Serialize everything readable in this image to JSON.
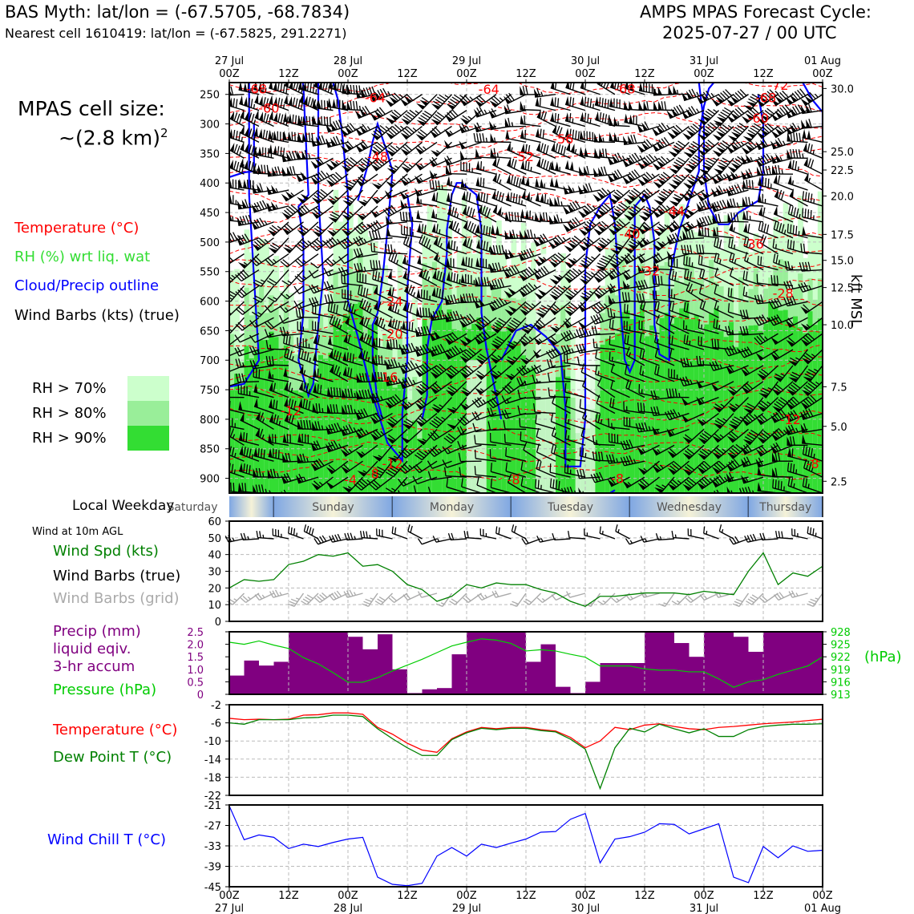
{
  "header": {
    "site_line": "BAS Myth: lat/lon = (-67.5705, -68.7834)",
    "cell_line": "Nearest cell 1610419: lat/lon = (-67.5825, 291.2271)",
    "cycle_title": "AMPS MPAS Forecast Cycle:",
    "cycle_value": "2025-07-27 / 00 UTC"
  },
  "side": {
    "cell_size_title": "MPAS cell size:",
    "cell_size_value": "~(2.8 km)",
    "cell_size_exp": "2",
    "legend_temperature": "Temperature (°C)",
    "legend_rh": "RH (%) wrt liq. wat",
    "legend_cloud": "Cloud/Precip outline",
    "legend_wind": "Wind Barbs (kts) (true)",
    "rh70": "RH > 70%",
    "rh80": "RH > 80%",
    "rh90": "RH > 90%",
    "local_weekday": "Local Weekday",
    "wind_10m": "Wind at 10m AGL",
    "wind_spd": "Wind Spd (kts)",
    "wind_barbs_true": "Wind Barbs (true)",
    "wind_barbs_grid": "Wind Barbs (grid)",
    "precip_1": "Precip (mm)",
    "precip_2": "liquid eqiv.",
    "precip_3": "3-hr accum",
    "pressure": "Pressure (hPa)",
    "pressure_unit": "(hPa)",
    "temp_label": "Temperature (°C)",
    "dew_label": "Dew Point T (°C)",
    "windchill_label": "Wind Chill T (°C)",
    "kft_label": "kft MSL"
  },
  "colors": {
    "temperature": "#ff0000",
    "rh_label": "#33dd33",
    "cloud": "#0000ff",
    "rh70": "#ccffcc",
    "rh80": "#99ee99",
    "rh90": "#33dd33",
    "precip": "#800080",
    "pressure": "#00aa00",
    "dewpoint": "#008000",
    "windchill": "#0000ff",
    "grid_barb": "#aaaaaa"
  },
  "time_axis": {
    "top_ticks": [
      {
        "l1": "27 Jul",
        "l2": "00Z"
      },
      {
        "l1": "",
        "l2": "12Z"
      },
      {
        "l1": "28 Jul",
        "l2": "00Z"
      },
      {
        "l1": "",
        "l2": "12Z"
      },
      {
        "l1": "29 Jul",
        "l2": "00Z"
      },
      {
        "l1": "",
        "l2": "12Z"
      },
      {
        "l1": "30 Jul",
        "l2": "00Z"
      },
      {
        "l1": "",
        "l2": "12Z"
      },
      {
        "l1": "31 Jul",
        "l2": "00Z"
      },
      {
        "l1": "",
        "l2": "12Z"
      },
      {
        "l1": "01 Aug",
        "l2": "00Z"
      }
    ],
    "weekdays": [
      "Saturday",
      "Sunday",
      "Monday",
      "Tuesday",
      "Wednesday",
      "Thursday"
    ]
  },
  "chart_data": [
    {
      "type": "heatmap",
      "name": "time-height cross section",
      "y_pressure_ticks": [
        250,
        300,
        350,
        400,
        450,
        500,
        550,
        600,
        650,
        700,
        750,
        800,
        850,
        900
      ],
      "ylim_hpa": [
        925,
        230
      ],
      "y_kft_ticks": [
        {
          "p": 240,
          "label": "30.0"
        },
        {
          "p": 347,
          "label": "25.0"
        },
        {
          "p": 378,
          "label": "22.5"
        },
        {
          "p": 422,
          "label": "20.0"
        },
        {
          "p": 487,
          "label": "17.5"
        },
        {
          "p": 531,
          "label": "15.0"
        },
        {
          "p": 577,
          "label": "12.5"
        },
        {
          "p": 640,
          "label": "10.0"
        },
        {
          "p": 745,
          "label": "7.5"
        },
        {
          "p": 812,
          "label": "5.0"
        },
        {
          "p": 905,
          "label": "2.5"
        }
      ],
      "temperature_labels": [
        {
          "h": 5.5,
          "p": 240,
          "t": "-68"
        },
        {
          "h": 8,
          "p": 273,
          "t": "-60"
        },
        {
          "h": 29.5,
          "p": 255,
          "t": "-64"
        },
        {
          "h": 52.5,
          "p": 241,
          "t": "-64"
        },
        {
          "h": 80,
          "p": 240,
          "t": "-68"
        },
        {
          "h": 111,
          "p": 234,
          "t": "-72"
        },
        {
          "h": 108.5,
          "p": 255,
          "t": "-68"
        },
        {
          "h": 107,
          "p": 290,
          "t": "-60"
        },
        {
          "h": 67.5,
          "p": 325,
          "t": "-56"
        },
        {
          "h": 30,
          "p": 355,
          "t": "-48"
        },
        {
          "h": 59.5,
          "p": 355,
          "t": "-52"
        },
        {
          "h": 90,
          "p": 447,
          "t": "-44"
        },
        {
          "h": 81,
          "p": 486,
          "t": "-40"
        },
        {
          "h": 106,
          "p": 503,
          "t": "-36"
        },
        {
          "h": 85,
          "p": 548,
          "t": "-32"
        },
        {
          "h": 112,
          "p": 586,
          "t": "-28"
        },
        {
          "h": 33,
          "p": 600,
          "t": "-24"
        },
        {
          "h": 33,
          "p": 655,
          "t": "-20"
        },
        {
          "h": 32,
          "p": 728,
          "t": "-16"
        },
        {
          "h": 12.5,
          "p": 785,
          "t": "-12"
        },
        {
          "h": 113.5,
          "p": 800,
          "t": "-12"
        },
        {
          "h": 33,
          "p": 875,
          "t": "-12"
        },
        {
          "h": 29,
          "p": 892,
          "t": "-8"
        },
        {
          "h": 57.5,
          "p": 902,
          "t": "-8"
        },
        {
          "h": 78.5,
          "p": 900,
          "t": "-8"
        },
        {
          "h": 118,
          "p": 875,
          "t": "-8"
        },
        {
          "h": 24.5,
          "p": 902,
          "t": "-4"
        }
      ]
    },
    {
      "type": "line",
      "name": "wind speed",
      "ylim": [
        0,
        60
      ],
      "yticks": [
        0,
        10,
        20,
        30,
        40,
        50,
        60
      ],
      "x_hours": [
        0,
        3,
        6,
        9,
        12,
        15,
        18,
        21,
        24,
        27,
        30,
        33,
        36,
        39,
        42,
        45,
        48,
        51,
        54,
        57,
        60,
        63,
        66,
        69,
        72,
        75,
        78,
        81,
        84,
        87,
        90,
        93,
        96,
        99,
        102,
        105,
        108,
        111,
        114,
        117,
        120
      ],
      "values": [
        20,
        25,
        24,
        25,
        34,
        36,
        40,
        39,
        41,
        33,
        34,
        30,
        22,
        19,
        12,
        15,
        22,
        20,
        23,
        22,
        22,
        19,
        17,
        12,
        9,
        15,
        15,
        16,
        17,
        17,
        17,
        16,
        18,
        17,
        16,
        30,
        41,
        22,
        29,
        27,
        33
      ]
    },
    {
      "type": "bar",
      "name": "3-hr precipitation and pressure",
      "ylim_precip": [
        0,
        2.5
      ],
      "yticks_precip": [
        "0",
        "0.5",
        "1.0",
        "1.5",
        "2.0",
        "2.5"
      ],
      "ylim_pressure": [
        913,
        928
      ],
      "yticks_pressure": [
        "913",
        "916",
        "919",
        "922",
        "925",
        "928"
      ],
      "bar_end_hours": [
        3,
        6,
        9,
        12,
        15,
        18,
        21,
        24,
        27,
        30,
        33,
        36,
        39,
        42,
        45,
        48,
        51,
        54,
        57,
        60,
        63,
        66,
        69,
        72,
        75,
        78,
        81,
        84,
        87,
        90,
        93,
        96,
        99,
        102,
        105,
        108,
        111,
        114,
        117,
        120
      ],
      "precip": [
        0.75,
        1.35,
        1.15,
        1.3,
        2.55,
        2.55,
        2.55,
        2.55,
        2.3,
        1.8,
        2.4,
        1.0,
        0.05,
        0.2,
        0.25,
        1.6,
        2.55,
        2.55,
        2.55,
        2.55,
        1.3,
        2.0,
        0.3,
        0.05,
        0.5,
        1.25,
        1.25,
        1.25,
        2.55,
        2.55,
        2.05,
        1.5,
        2.55,
        2.55,
        2.3,
        1.7,
        2.55,
        2.55,
        2.55,
        2.55
      ],
      "pressure_hours": [
        0,
        3,
        6,
        9,
        12,
        15,
        18,
        21,
        24,
        27,
        30,
        33,
        36,
        39,
        42,
        45,
        48,
        51,
        54,
        57,
        60,
        63,
        66,
        69,
        72,
        75,
        78,
        81,
        84,
        87,
        90,
        93,
        96,
        99,
        102,
        105,
        108,
        111,
        114,
        117,
        120
      ],
      "pressure": [
        925.5,
        925.0,
        925.8,
        924.8,
        924.0,
        921.8,
        920.3,
        918.2,
        915.9,
        915.9,
        917.0,
        918.6,
        920.0,
        921.4,
        923.0,
        924.6,
        925.5,
        926.3,
        926.0,
        925.2,
        923.4,
        923.7,
        923.4,
        922.6,
        921.9,
        919.8,
        919.8,
        919.8,
        919.1,
        918.8,
        918.8,
        918.4,
        918.4,
        916.7,
        914.7,
        916.0,
        916.5,
        917.8,
        918.8,
        919.8,
        922.0
      ]
    },
    {
      "type": "line",
      "name": "temperature and dew point",
      "ylim": [
        -22,
        -2
      ],
      "yticks": [
        -2,
        -6,
        -10,
        -14,
        -18,
        -22
      ],
      "x_hours": [
        0,
        3,
        6,
        9,
        12,
        15,
        18,
        21,
        24,
        27,
        30,
        33,
        36,
        39,
        42,
        45,
        48,
        51,
        54,
        57,
        60,
        63,
        66,
        69,
        72,
        75,
        78,
        81,
        84,
        87,
        90,
        93,
        96,
        99,
        102,
        105,
        108,
        111,
        114,
        117,
        120
      ],
      "series": [
        {
          "name": "Temperature",
          "values": [
            -5.0,
            -5.3,
            -5.2,
            -5.3,
            -5.2,
            -4.3,
            -4.2,
            -3.8,
            -3.8,
            -4.1,
            -7.0,
            -8.5,
            -10.5,
            -12.0,
            -12.5,
            -9.5,
            -8.0,
            -7.0,
            -7.3,
            -7.0,
            -7.0,
            -7.5,
            -7.8,
            -9.2,
            -11.5,
            -10.0,
            -7.0,
            -7.5,
            -6.5,
            -6.2,
            -6.8,
            -7.3,
            -7.5,
            -7.0,
            -6.8,
            -6.5,
            -6.2,
            -6.0,
            -5.8,
            -5.5,
            -5.2
          ]
        },
        {
          "name": "Dew Point T",
          "values": [
            -6.0,
            -6.3,
            -5.3,
            -5.3,
            -5.3,
            -4.9,
            -4.8,
            -4.3,
            -4.3,
            -4.6,
            -7.3,
            -9.5,
            -11.5,
            -13.2,
            -13.2,
            -9.7,
            -8.2,
            -7.2,
            -7.5,
            -7.2,
            -7.2,
            -7.7,
            -8.0,
            -9.6,
            -11.8,
            -20.5,
            -11.5,
            -7.2,
            -8.0,
            -6.3,
            -7.3,
            -8.2,
            -7.3,
            -9.0,
            -9.0,
            -7.5,
            -6.8,
            -6.5,
            -6.3,
            -6.3,
            -6.2
          ]
        }
      ]
    },
    {
      "type": "line",
      "name": "wind chill",
      "ylim": [
        -45,
        -21
      ],
      "yticks": [
        -21,
        -27,
        -33,
        -39,
        -45
      ],
      "x_hours": [
        0,
        3,
        6,
        9,
        12,
        15,
        18,
        21,
        24,
        27,
        30,
        33,
        36,
        39,
        42,
        45,
        48,
        51,
        54,
        57,
        60,
        63,
        66,
        69,
        72,
        75,
        78,
        81,
        84,
        87,
        90,
        93,
        96,
        99,
        102,
        105,
        108,
        111,
        114,
        117,
        120
      ],
      "values": [
        -21.3,
        -31.2,
        -29.8,
        -30.5,
        -33.8,
        -32.5,
        -33.2,
        -32.0,
        -31.0,
        -30.5,
        -42.2,
        -44.3,
        -44.7,
        -44.0,
        -36.0,
        -33.5,
        -36.0,
        -32.5,
        -33.5,
        -32.2,
        -31.0,
        -29.0,
        -28.8,
        -25.2,
        -23.5,
        -38.0,
        -31.0,
        -30.3,
        -29.0,
        -26.5,
        -26.7,
        -29.5,
        -28.0,
        -26.5,
        -42.2,
        -43.8,
        -33.2,
        -36.5,
        -33.0,
        -34.6,
        -34.3
      ]
    }
  ]
}
